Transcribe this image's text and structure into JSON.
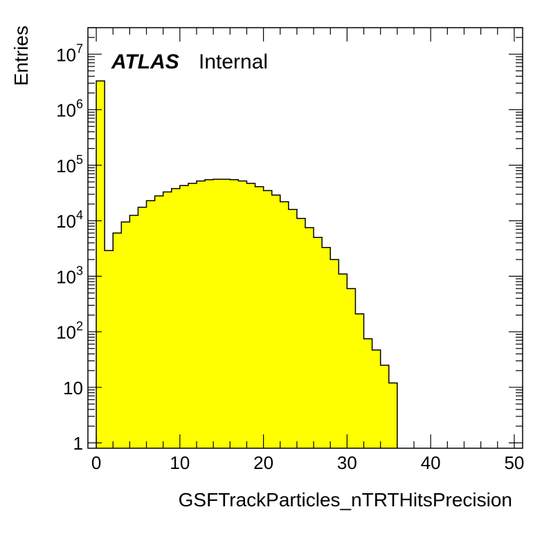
{
  "chart_data": {
    "type": "bar",
    "histogram": true,
    "xlabel": "GSFTrackParticles_nTRTHitsPrecision",
    "ylabel": "Entries",
    "annotation_bold": "ATLAS",
    "annotation_text": "Internal",
    "xlim": [
      -1,
      51
    ],
    "ylim": [
      0.8,
      30000000
    ],
    "log_y": true,
    "grid": false,
    "legend": "none",
    "bin_width": 1,
    "bin_low_edges": [
      0,
      1,
      2,
      3,
      4,
      5,
      6,
      7,
      8,
      9,
      10,
      11,
      12,
      13,
      14,
      15,
      16,
      17,
      18,
      19,
      20,
      21,
      22,
      23,
      24,
      25,
      26,
      27,
      28,
      29,
      30,
      31,
      32,
      33,
      34,
      35
    ],
    "values": [
      3300000,
      2900,
      6000,
      9500,
      12500,
      17500,
      23000,
      28000,
      33000,
      38000,
      43000,
      47000,
      52000,
      55000,
      56000,
      56000,
      55000,
      52000,
      47000,
      41000,
      35000,
      29000,
      22000,
      16000,
      11000,
      7500,
      5000,
      3300,
      2000,
      1100,
      600,
      210,
      75,
      47,
      25,
      12
    ],
    "x_ticks": [
      "0",
      "10",
      "20",
      "30",
      "40",
      "50"
    ],
    "y_ticks": [
      {
        "value": 1,
        "label": "1",
        "exp": ""
      },
      {
        "value": 10,
        "label": "10",
        "exp": ""
      },
      {
        "value": 100,
        "label": "10",
        "exp": "2"
      },
      {
        "value": 1000,
        "label": "10",
        "exp": "3"
      },
      {
        "value": 10000,
        "label": "10",
        "exp": "4"
      },
      {
        "value": 100000,
        "label": "10",
        "exp": "5"
      },
      {
        "value": 1000000,
        "label": "10",
        "exp": "6"
      },
      {
        "value": 10000000,
        "label": "10",
        "exp": "7"
      }
    ],
    "colors": {
      "fill": "#ffff00",
      "line": "#000000",
      "frame": "#000000"
    }
  }
}
